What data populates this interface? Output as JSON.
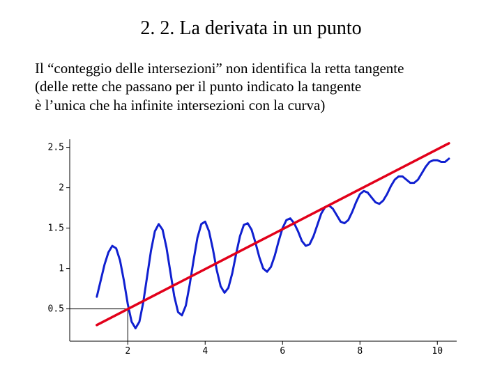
{
  "title": "2. 2. La derivata in un punto",
  "paragraph_line1": "Il “conteggio delle intersezioni” non identifica la retta tangente",
  "paragraph_line2": "(delle rette che passano per il punto indicato la tangente",
  "paragraph_line3": "è l’unica che ha infinite intersezioni con la curva)",
  "chart": {
    "type": "line",
    "background_color": "#ffffff",
    "axis_color": "#000000",
    "tick_font_family": "monospace",
    "tick_fontsize": 13,
    "xlim": [
      0.5,
      10.5
    ],
    "ylim": [
      0.1,
      2.6
    ],
    "x_ticks": [
      2,
      4,
      6,
      8,
      10
    ],
    "y_ticks": [
      0.5,
      1,
      1.5,
      2,
      2.5
    ],
    "x_tick_labels": [
      "2",
      "4",
      "6",
      "8",
      "10"
    ],
    "y_tick_labels": [
      "0.5",
      "1",
      "1.5",
      "2",
      "2.5"
    ],
    "marker_lines": {
      "x": 2,
      "y": 0.5,
      "color": "#000000",
      "width": 1
    },
    "tangent_line": {
      "color": "#e2001a",
      "width": 3.5,
      "x1": 1.2,
      "y1": 0.3,
      "x2": 10.3,
      "y2": 2.55
    },
    "curve": {
      "color": "#1020d0",
      "width": 3.0,
      "points": [
        [
          1.2,
          0.65
        ],
        [
          1.3,
          0.85
        ],
        [
          1.4,
          1.05
        ],
        [
          1.5,
          1.2
        ],
        [
          1.6,
          1.28
        ],
        [
          1.7,
          1.25
        ],
        [
          1.8,
          1.1
        ],
        [
          1.9,
          0.85
        ],
        [
          2.0,
          0.56
        ],
        [
          2.1,
          0.34
        ],
        [
          2.2,
          0.26
        ],
        [
          2.3,
          0.34
        ],
        [
          2.4,
          0.58
        ],
        [
          2.5,
          0.9
        ],
        [
          2.6,
          1.22
        ],
        [
          2.7,
          1.46
        ],
        [
          2.8,
          1.55
        ],
        [
          2.9,
          1.48
        ],
        [
          3.0,
          1.26
        ],
        [
          3.1,
          0.96
        ],
        [
          3.2,
          0.66
        ],
        [
          3.3,
          0.46
        ],
        [
          3.4,
          0.42
        ],
        [
          3.5,
          0.54
        ],
        [
          3.6,
          0.8
        ],
        [
          3.7,
          1.1
        ],
        [
          3.8,
          1.38
        ],
        [
          3.9,
          1.55
        ],
        [
          4.0,
          1.58
        ],
        [
          4.1,
          1.46
        ],
        [
          4.2,
          1.24
        ],
        [
          4.3,
          0.98
        ],
        [
          4.4,
          0.78
        ],
        [
          4.5,
          0.7
        ],
        [
          4.6,
          0.76
        ],
        [
          4.7,
          0.94
        ],
        [
          4.8,
          1.18
        ],
        [
          4.9,
          1.4
        ],
        [
          5.0,
          1.54
        ],
        [
          5.1,
          1.56
        ],
        [
          5.2,
          1.48
        ],
        [
          5.3,
          1.32
        ],
        [
          5.4,
          1.14
        ],
        [
          5.5,
          1.0
        ],
        [
          5.6,
          0.96
        ],
        [
          5.7,
          1.02
        ],
        [
          5.8,
          1.16
        ],
        [
          5.9,
          1.34
        ],
        [
          6.0,
          1.5
        ],
        [
          6.1,
          1.6
        ],
        [
          6.2,
          1.62
        ],
        [
          6.3,
          1.56
        ],
        [
          6.4,
          1.46
        ],
        [
          6.5,
          1.34
        ],
        [
          6.6,
          1.28
        ],
        [
          6.7,
          1.3
        ],
        [
          6.8,
          1.4
        ],
        [
          6.9,
          1.54
        ],
        [
          7.0,
          1.68
        ],
        [
          7.1,
          1.76
        ],
        [
          7.2,
          1.78
        ],
        [
          7.3,
          1.74
        ],
        [
          7.4,
          1.66
        ],
        [
          7.5,
          1.58
        ],
        [
          7.6,
          1.56
        ],
        [
          7.7,
          1.6
        ],
        [
          7.8,
          1.7
        ],
        [
          7.9,
          1.82
        ],
        [
          8.0,
          1.92
        ],
        [
          8.1,
          1.96
        ],
        [
          8.2,
          1.94
        ],
        [
          8.3,
          1.88
        ],
        [
          8.4,
          1.82
        ],
        [
          8.5,
          1.8
        ],
        [
          8.6,
          1.84
        ],
        [
          8.7,
          1.92
        ],
        [
          8.8,
          2.02
        ],
        [
          8.9,
          2.1
        ],
        [
          9.0,
          2.14
        ],
        [
          9.1,
          2.14
        ],
        [
          9.2,
          2.1
        ],
        [
          9.3,
          2.06
        ],
        [
          9.4,
          2.06
        ],
        [
          9.5,
          2.1
        ],
        [
          9.6,
          2.18
        ],
        [
          9.7,
          2.26
        ],
        [
          9.8,
          2.32
        ],
        [
          9.9,
          2.34
        ],
        [
          10.0,
          2.34
        ],
        [
          10.1,
          2.32
        ],
        [
          10.2,
          2.32
        ],
        [
          10.3,
          2.36
        ]
      ]
    }
  }
}
